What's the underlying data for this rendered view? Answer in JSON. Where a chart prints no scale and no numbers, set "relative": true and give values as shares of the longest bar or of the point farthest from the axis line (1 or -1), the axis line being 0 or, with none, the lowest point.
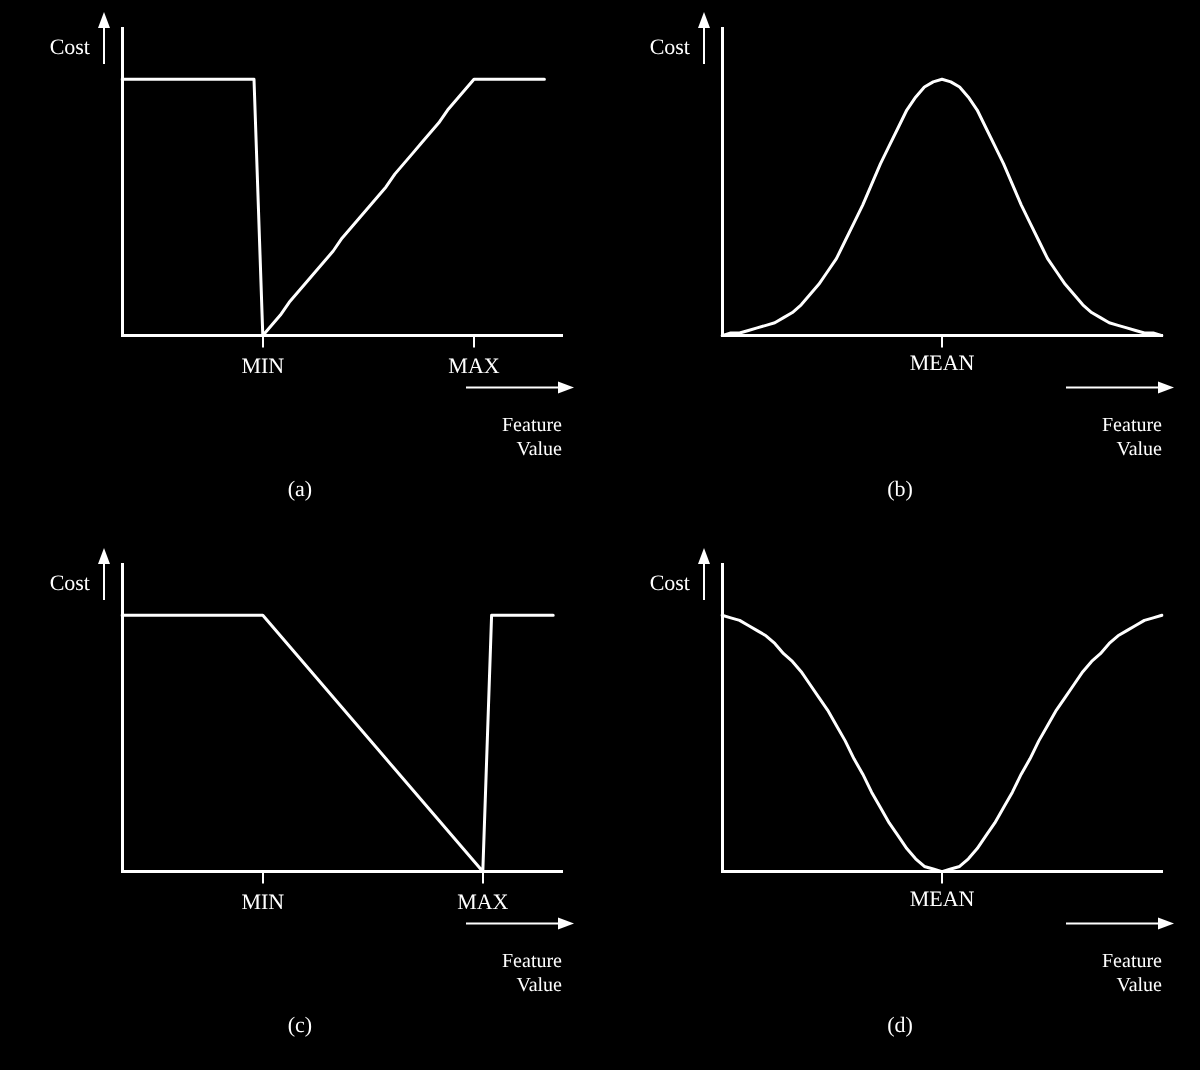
{
  "chart_data": [
    {
      "type": "line",
      "relative": true,
      "xlabel": "Feature Value",
      "ylabel": "Cost",
      "title": "(a)",
      "categories": [
        null,
        null,
        null,
        null,
        null,
        null,
        null,
        null,
        null,
        null,
        null,
        null,
        null,
        null,
        null,
        null,
        "MIN",
        null,
        null,
        null,
        null,
        null,
        null,
        null,
        null,
        null,
        null,
        null,
        null,
        null,
        null,
        null,
        null,
        null,
        null,
        null,
        null,
        null,
        null,
        null,
        "MAX",
        null,
        null,
        null,
        null,
        null,
        null,
        null,
        null,
        null,
        null
      ],
      "series": [
        {
          "color": "#ffffff",
          "values": [
            1,
            1,
            1,
            1,
            1,
            1,
            1,
            1,
            1,
            1,
            1,
            1,
            1,
            1,
            1,
            1,
            0,
            0.04,
            0.08,
            0.13,
            0.17,
            0.21,
            0.25,
            0.29,
            0.33,
            0.38,
            0.42,
            0.46,
            0.5,
            0.54,
            0.58,
            0.63,
            0.67,
            0.71,
            0.75,
            0.79,
            0.83,
            0.88,
            0.92,
            0.96,
            1,
            1,
            1,
            1,
            1,
            1,
            1,
            1,
            1,
            null,
            null
          ]
        }
      ]
    },
    {
      "type": "line",
      "relative": true,
      "xlabel": "Feature Value",
      "ylabel": "Cost",
      "title": "(b)",
      "annotations": [
        "MEAN"
      ],
      "categories": [
        null,
        null,
        null,
        null,
        null,
        null,
        null,
        null,
        null,
        null,
        null,
        null,
        null,
        null,
        null,
        null,
        null,
        null,
        null,
        null,
        null,
        null,
        null,
        null,
        null,
        null,
        null,
        null,
        null,
        null,
        null,
        null,
        null,
        null,
        null,
        null,
        null,
        null,
        null,
        null,
        null,
        null,
        null,
        null,
        null,
        null,
        null,
        null,
        null,
        null,
        null
      ],
      "series": [
        {
          "color": "#ffffff",
          "values": [
            0,
            0.01,
            0.01,
            0.02,
            0.03,
            0.04,
            0.05,
            0.07,
            0.09,
            0.12,
            0.16,
            0.2,
            0.25,
            0.3,
            0.37,
            0.44,
            0.51,
            0.59,
            0.67,
            0.74,
            0.81,
            0.88,
            0.93,
            0.97,
            0.99,
            1,
            0.99,
            0.97,
            0.93,
            0.88,
            0.81,
            0.74,
            0.67,
            0.59,
            0.51,
            0.44,
            0.37,
            0.3,
            0.25,
            0.2,
            0.16,
            0.12,
            0.09,
            0.07,
            0.05,
            0.04,
            0.03,
            0.02,
            0.01,
            0.01,
            0
          ]
        }
      ]
    },
    {
      "type": "line",
      "relative": true,
      "xlabel": "Feature Value",
      "ylabel": "Cost",
      "title": "(c)",
      "categories": [
        null,
        null,
        null,
        null,
        null,
        null,
        null,
        null,
        null,
        null,
        null,
        null,
        null,
        null,
        null,
        null,
        "MIN",
        null,
        null,
        null,
        null,
        null,
        null,
        null,
        null,
        null,
        null,
        null,
        null,
        null,
        null,
        null,
        null,
        null,
        null,
        null,
        null,
        null,
        null,
        null,
        null,
        "MAX",
        null,
        null,
        null,
        null,
        null,
        null,
        null,
        null,
        null
      ],
      "series": [
        {
          "color": "#ffffff",
          "values": [
            1,
            1,
            1,
            1,
            1,
            1,
            1,
            1,
            1,
            1,
            1,
            1,
            1,
            1,
            1,
            1,
            1,
            0.96,
            0.92,
            0.88,
            0.84,
            0.8,
            0.76,
            0.72,
            0.68,
            0.64,
            0.6,
            0.56,
            0.52,
            0.48,
            0.44,
            0.4,
            0.36,
            0.32,
            0.28,
            0.24,
            0.2,
            0.16,
            0.12,
            0.08,
            0.04,
            0,
            1,
            1,
            1,
            1,
            1,
            1,
            1,
            1,
            null
          ]
        }
      ]
    },
    {
      "type": "line",
      "relative": true,
      "xlabel": "Feature Value",
      "ylabel": "Cost",
      "title": "(d)",
      "annotations": [
        "MEAN"
      ],
      "categories": [
        null,
        null,
        null,
        null,
        null,
        null,
        null,
        null,
        null,
        null,
        null,
        null,
        null,
        null,
        null,
        null,
        null,
        null,
        null,
        null,
        null,
        null,
        null,
        null,
        null,
        null,
        null,
        null,
        null,
        null,
        null,
        null,
        null,
        null,
        null,
        null,
        null,
        null,
        null,
        null,
        null,
        null,
        null,
        null,
        null,
        null,
        null,
        null,
        null,
        null,
        null
      ],
      "series": [
        {
          "color": "#ffffff",
          "values": [
            1,
            0.99,
            0.98,
            0.96,
            0.94,
            0.92,
            0.89,
            0.85,
            0.82,
            0.78,
            0.73,
            0.68,
            0.63,
            0.57,
            0.51,
            0.44,
            0.38,
            0.31,
            0.25,
            0.19,
            0.14,
            0.09,
            0.05,
            0.02,
            0.01,
            0,
            0.01,
            0.02,
            0.05,
            0.09,
            0.14,
            0.19,
            0.25,
            0.31,
            0.38,
            0.44,
            0.51,
            0.57,
            0.63,
            0.68,
            0.73,
            0.78,
            0.82,
            0.85,
            0.89,
            0.92,
            0.94,
            0.96,
            0.98,
            0.99,
            1
          ]
        }
      ]
    }
  ]
}
